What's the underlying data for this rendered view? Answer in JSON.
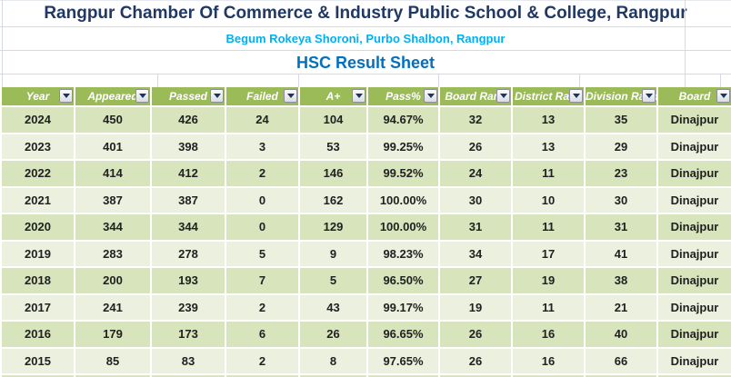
{
  "titles": {
    "school_name": "Rangpur Chamber Of Commerce & Industry Public School & College, Rangpur",
    "address": "Begum Rokeya Shoroni, Purbo Shalbon, Rangpur",
    "sheet_title": "HSC Result Sheet"
  },
  "icons": {
    "filter_dropdown": "chevron-down"
  },
  "colors": {
    "title_navy": "#1F3864",
    "subtitle_cyan": "#00B0F0",
    "sheet_title_blue": "#0070C0",
    "header_green": "#9BBB59",
    "band_dark": "#D7E4BC",
    "band_light": "#EBF1DE",
    "gridline": "#D5DAE2",
    "filter_arrow_navy": "#17375D"
  },
  "table": {
    "columns": [
      "Year",
      "Appeared",
      "Passed",
      "Failed",
      "A+",
      "Pass%",
      "Board Rank",
      "District Rank",
      "Division Rank",
      "Board"
    ],
    "rows": [
      [
        "2024",
        "450",
        "426",
        "24",
        "104",
        "94.67%",
        "32",
        "13",
        "35",
        "Dinajpur"
      ],
      [
        "2023",
        "401",
        "398",
        "3",
        "53",
        "99.25%",
        "26",
        "13",
        "29",
        "Dinajpur"
      ],
      [
        "2022",
        "414",
        "412",
        "2",
        "146",
        "99.52%",
        "24",
        "11",
        "23",
        "Dinajpur"
      ],
      [
        "2021",
        "387",
        "387",
        "0",
        "162",
        "100.00%",
        "30",
        "10",
        "30",
        "Dinajpur"
      ],
      [
        "2020",
        "344",
        "344",
        "0",
        "129",
        "100.00%",
        "31",
        "11",
        "31",
        "Dinajpur"
      ],
      [
        "2019",
        "283",
        "278",
        "5",
        "9",
        "98.23%",
        "34",
        "17",
        "41",
        "Dinajpur"
      ],
      [
        "2018",
        "200",
        "193",
        "7",
        "5",
        "96.50%",
        "27",
        "19",
        "38",
        "Dinajpur"
      ],
      [
        "2017",
        "241",
        "239",
        "2",
        "43",
        "99.17%",
        "19",
        "11",
        "21",
        "Dinajpur"
      ],
      [
        "2016",
        "179",
        "173",
        "6",
        "26",
        "96.65%",
        "26",
        "16",
        "40",
        "Dinajpur"
      ],
      [
        "2015",
        "85",
        "83",
        "2",
        "8",
        "97.65%",
        "26",
        "16",
        "66",
        "Dinajpur"
      ]
    ]
  }
}
